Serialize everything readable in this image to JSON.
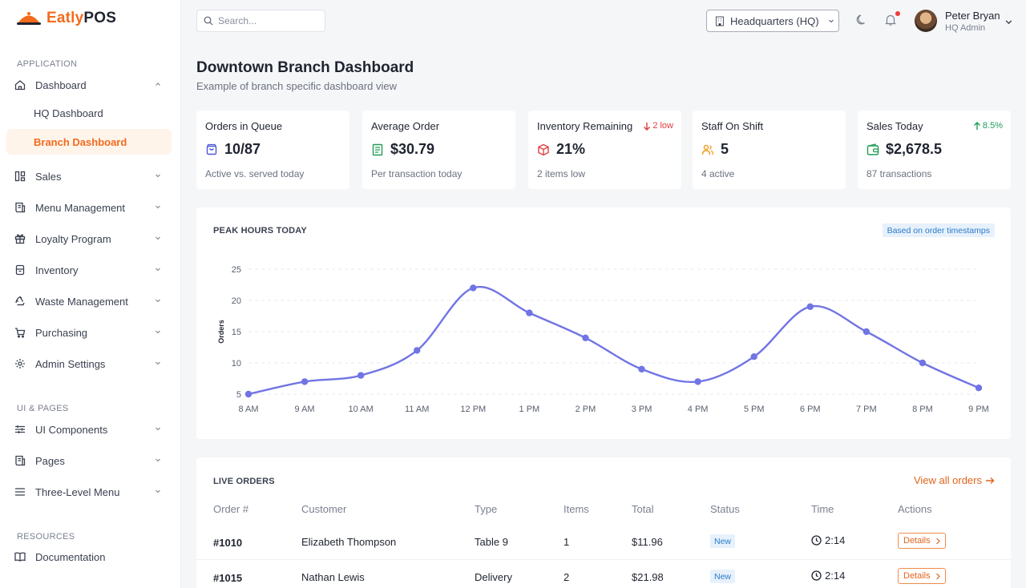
{
  "brand": {
    "name_part1": "Eatly",
    "name_part2": "POS",
    "color": "#f26b1d"
  },
  "sidebar": {
    "sections": [
      "APPLICATION",
      "UI & PAGES",
      "RESOURCES"
    ],
    "items": [
      {
        "label": "Dashboard",
        "icon": "home-icon"
      },
      {
        "label": "HQ Dashboard"
      },
      {
        "label": "Branch Dashboard"
      },
      {
        "label": "Sales",
        "icon": "sales-icon"
      },
      {
        "label": "Menu Management",
        "icon": "menu-book-icon"
      },
      {
        "label": "Loyalty Program",
        "icon": "gift-icon"
      },
      {
        "label": "Inventory",
        "icon": "inventory-icon"
      },
      {
        "label": "Waste Management",
        "icon": "recycle-icon"
      },
      {
        "label": "Purchasing",
        "icon": "cart-icon"
      },
      {
        "label": "Admin Settings",
        "icon": "gear-icon"
      },
      {
        "label": "UI Components",
        "icon": "sliders-icon"
      },
      {
        "label": "Pages",
        "icon": "pages-icon"
      },
      {
        "label": "Three-Level Menu",
        "icon": "hamburger-icon"
      },
      {
        "label": "Documentation",
        "icon": "book-icon"
      }
    ]
  },
  "topbar": {
    "search_placeholder": "Search...",
    "location": "Headquarters (HQ)",
    "user_name": "Peter Bryan",
    "user_role": "HQ Admin"
  },
  "page": {
    "title": "Downtown Branch Dashboard",
    "subtitle": "Example of branch specific dashboard view"
  },
  "stats": [
    {
      "label": "Orders in Queue",
      "value": "10/87",
      "note": "Active vs. served today",
      "icon": "bag-icon",
      "color": "#4b57d6"
    },
    {
      "label": "Average Order",
      "value": "$30.79",
      "note": "Per transaction today",
      "icon": "receipt-icon",
      "color": "#1f9d55"
    },
    {
      "label": "Inventory Remaining",
      "value": "21%",
      "note": "2 items low",
      "icon": "box-icon",
      "color": "#e23b3b",
      "trend": "2 low",
      "trend_dir": "down",
      "trend_color": "#e23b3b"
    },
    {
      "label": "Staff On Shift",
      "value": "5",
      "note": "4 active",
      "icon": "users-icon",
      "color": "#f0a020"
    },
    {
      "label": "Sales Today",
      "value": "$2,678.5",
      "note": "87 transactions",
      "icon": "wallet-icon",
      "color": "#1f9d55",
      "trend": "8.5%",
      "trend_dir": "up",
      "trend_color": "#1f9d55"
    }
  ],
  "peak_hours": {
    "heading": "PEAK HOURS TODAY",
    "badge": "Based on order timestamps"
  },
  "chart_data": {
    "type": "line",
    "categories": [
      "8 AM",
      "9 AM",
      "10 AM",
      "11 AM",
      "12 PM",
      "1 PM",
      "2 PM",
      "3 PM",
      "4 PM",
      "5 PM",
      "6 PM",
      "7 PM",
      "8 PM",
      "9 PM"
    ],
    "series": [
      {
        "values": [
          5,
          7,
          8,
          12,
          22,
          18,
          14,
          9,
          7,
          11,
          19,
          15,
          10,
          6
        ]
      }
    ],
    "title": "",
    "xlabel": "",
    "ylabel": "Orders",
    "ylim": [
      5,
      25
    ],
    "yticks": [
      5,
      10,
      15,
      20,
      25
    ],
    "grid": true,
    "line_color": "#7174e4"
  },
  "live_orders": {
    "heading": "LIVE ORDERS",
    "view_all": "View all orders",
    "columns": [
      "Order #",
      "Customer",
      "Type",
      "Items",
      "Total",
      "Status",
      "Time",
      "Actions"
    ],
    "rows": [
      {
        "id": "#1010",
        "customer": "Elizabeth Thompson",
        "type": "Table 9",
        "items": "1",
        "total": "$11.96",
        "status": "New",
        "time": "2:14",
        "action": "Details"
      },
      {
        "id": "#1015",
        "customer": "Nathan Lewis",
        "type": "Delivery",
        "items": "2",
        "total": "$21.98",
        "status": "New",
        "time": "2:14",
        "action": "Details"
      }
    ]
  }
}
